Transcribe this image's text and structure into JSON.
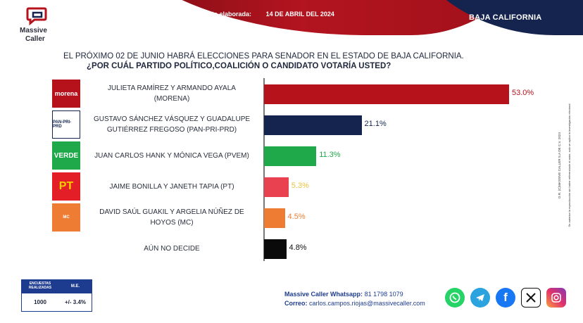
{
  "brand": {
    "line1": "Massive",
    "line2": "Caller"
  },
  "header": {
    "survey_label": "Última encuesta elaborada:",
    "survey_date": "14 DE ABRIL DEL 2024",
    "region": "BAJA CALIFORNIA"
  },
  "question": {
    "line1": "EL PRÓXIMO 02 DE JUNIO HABRÁ ELECCIONES PARA SENADOR EN EL ESTADO DE BAJA CALIFORNIA.",
    "line2": "¿POR CUÁL PARTIDO POLÍTICO,COALICIÓN  O CANDIDATO  VOTARÍA USTED?"
  },
  "chart_data": {
    "type": "bar",
    "orientation": "horizontal",
    "categories": [
      "JULIETA RAMÍREZ Y ARMANDO AYALA (MORENA)",
      "GUSTAVO SÁNCHEZ VÁSQUEZ  Y GUADALUPE GUTIÉRREZ FREGOSO (PAN-PRI-PRD)",
      "JUAN CARLOS HANK Y MÓNICA VEGA (PVEM)",
      "JAIME BONILLA Y JANETH TAPIA (PT)",
      "DAVID SAÚL GUAKIL Y  ARGELIA NÚÑEZ DE HOYOS (MC)",
      "AÚN NO DECIDE"
    ],
    "label_lines": [
      [
        "JULIETA RAMÍREZ Y ARMANDO AYALA",
        "(MORENA)"
      ],
      [
        "GUSTAVO SÁNCHEZ VÁSQUEZ  Y GUADALUPE",
        "GUTIÉRREZ FREGOSO (PAN-PRI-PRD)"
      ],
      [
        "JUAN CARLOS HANK Y MÓNICA VEGA (PVEM)"
      ],
      [
        "JAIME BONILLA Y JANETH TAPIA (PT)"
      ],
      [
        "DAVID SAÚL GUAKIL Y  ARGELIA NÚÑEZ DE",
        "HOYOS (MC)"
      ],
      [
        "AÚN NO DECIDE"
      ]
    ],
    "values": [
      53.0,
      21.1,
      11.3,
      5.3,
      4.5,
      4.8
    ],
    "value_labels": [
      "53.0%",
      "21.1%",
      "11.3%",
      "5.3%",
      "4.5%",
      "4.8%"
    ],
    "colors": [
      "#b5121b",
      "#14244f",
      "#20a94a",
      "#e9414f",
      "#ee7d33",
      "#0a0a0a"
    ],
    "value_colors": [
      "#b5121b",
      "#14244f",
      "#20a94a",
      "#e8c23a",
      "#ee7d33",
      "#111111"
    ],
    "party_logos": [
      "morena",
      "PAN-PRI-PRD",
      "VERDE",
      "PT",
      "MC",
      ""
    ],
    "xlim": [
      0,
      53.0
    ],
    "grid": false
  },
  "stats": {
    "h1": "ENCUESTAS REALIZADAS",
    "h2": "M.E.",
    "v1": "1000",
    "v2": "+/- 3.4%"
  },
  "contact": {
    "whatsapp_label": "Massive Caller Whatsapp:",
    "whatsapp_value": "81 1798 1079",
    "email_label": "Correo:",
    "email_value": "carlos.campos.riojas@massivecaller.com"
  },
  "socials": [
    "whatsapp-icon",
    "telegram-icon",
    "facebook-icon",
    "x-icon",
    "instagram-icon"
  ],
  "vertical_note": {
    "line1": "D.R. (C)MASSIVE CALLER S.A DE C.V. 2024",
    "line2": "Se autoriza la reproducción sin haber referenciado al autor, solo se aplica la investigación electoral"
  }
}
